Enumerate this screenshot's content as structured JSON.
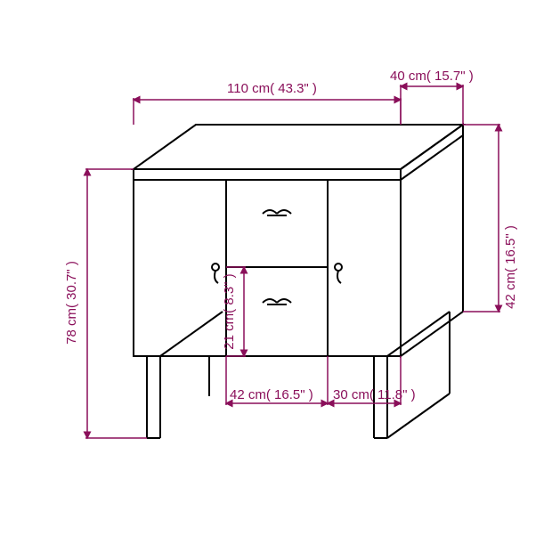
{
  "dimensions": {
    "width_top": {
      "label": "110 cm( 43.3\" )"
    },
    "depth_top": {
      "label": "40 cm( 15.7\" )"
    },
    "height_left": {
      "label": "78 cm( 30.7\" )"
    },
    "height_right": {
      "label": "42 cm( 16.5\" )"
    },
    "drawer_h": {
      "label": "21 cm( 8.3\" )"
    },
    "width_mid": {
      "label": "42 cm( 16.5\" )"
    },
    "width_right_b": {
      "label": "30 cm( 11.8\" )"
    }
  },
  "colors": {
    "dim": "#8a0f5a",
    "furniture": "#000000",
    "bg": "#ffffff"
  },
  "arrow_size": 6,
  "fontsize": 15
}
